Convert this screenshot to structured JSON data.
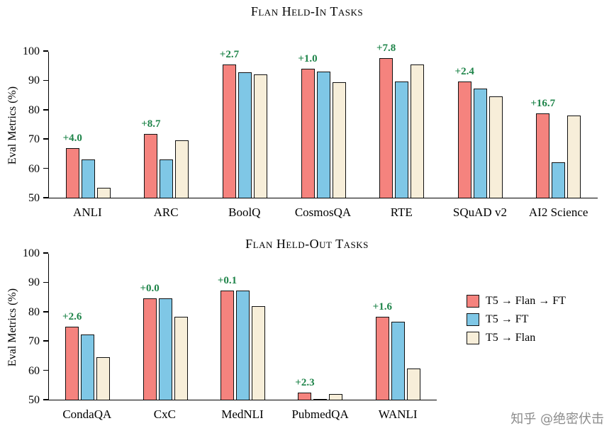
{
  "watermark": "知乎 @绝密伏击",
  "legend": {
    "items": [
      {
        "label": "T5 → Flan → FT",
        "color": "#F5837E"
      },
      {
        "label": "T5 → FT",
        "color": "#7FC7E6"
      },
      {
        "label": "T5 → Flan",
        "color": "#F7EED9"
      }
    ]
  },
  "chart_data": [
    {
      "type": "bar",
      "title": "Flan Held-In Tasks",
      "xlabel": "",
      "ylabel": "Eval Metrics (%)",
      "ylim": [
        50,
        100
      ],
      "yticks": [
        50,
        60,
        70,
        80,
        90,
        100
      ],
      "grid": false,
      "legend_position": "none",
      "categories": [
        "ANLI",
        "ARC",
        "BoolQ",
        "CosmosQA",
        "RTE",
        "SQuAD v2",
        "AI2 Science"
      ],
      "series": [
        {
          "name": "T5 → Flan → FT",
          "color": "#F5837E",
          "values": [
            67.0,
            71.8,
            95.5,
            94.0,
            97.5,
            89.7,
            78.8
          ]
        },
        {
          "name": "T5 → FT",
          "color": "#7FC7E6",
          "values": [
            63.0,
            63.1,
            92.8,
            93.0,
            89.7,
            87.3,
            62.1
          ]
        },
        {
          "name": "T5 → Flan",
          "color": "#F7EED9",
          "values": [
            53.3,
            69.5,
            92.0,
            89.4,
            95.5,
            84.5,
            78.0
          ]
        }
      ],
      "annotations": [
        "+4.0",
        "+8.7",
        "+2.7",
        "+1.0",
        "+7.8",
        "+2.4",
        "+16.7"
      ],
      "annotation_color": "#1e8449"
    },
    {
      "type": "bar",
      "title": "Flan Held-Out Tasks",
      "xlabel": "",
      "ylabel": "Eval Metrics (%)",
      "ylim": [
        50,
        100
      ],
      "yticks": [
        50,
        60,
        70,
        80,
        90,
        100
      ],
      "grid": false,
      "legend_position": "right",
      "categories": [
        "CondaQA",
        "CxC",
        "MedNLI",
        "PubmedQA",
        "WANLI"
      ],
      "series": [
        {
          "name": "T5 → Flan → FT",
          "color": "#F5837E",
          "values": [
            74.8,
            84.5,
            87.2,
            52.5,
            78.2
          ]
        },
        {
          "name": "T5 → FT",
          "color": "#7FC7E6",
          "values": [
            72.2,
            84.5,
            87.1,
            50.2,
            76.6
          ]
        },
        {
          "name": "T5 → Flan",
          "color": "#F7EED9",
          "values": [
            64.5,
            78.3,
            81.8,
            52.0,
            60.7
          ]
        }
      ],
      "annotations": [
        "+2.6",
        "+0.0",
        "+0.1",
        "+2.3",
        "+1.6"
      ],
      "annotation_color": "#1e8449"
    }
  ]
}
